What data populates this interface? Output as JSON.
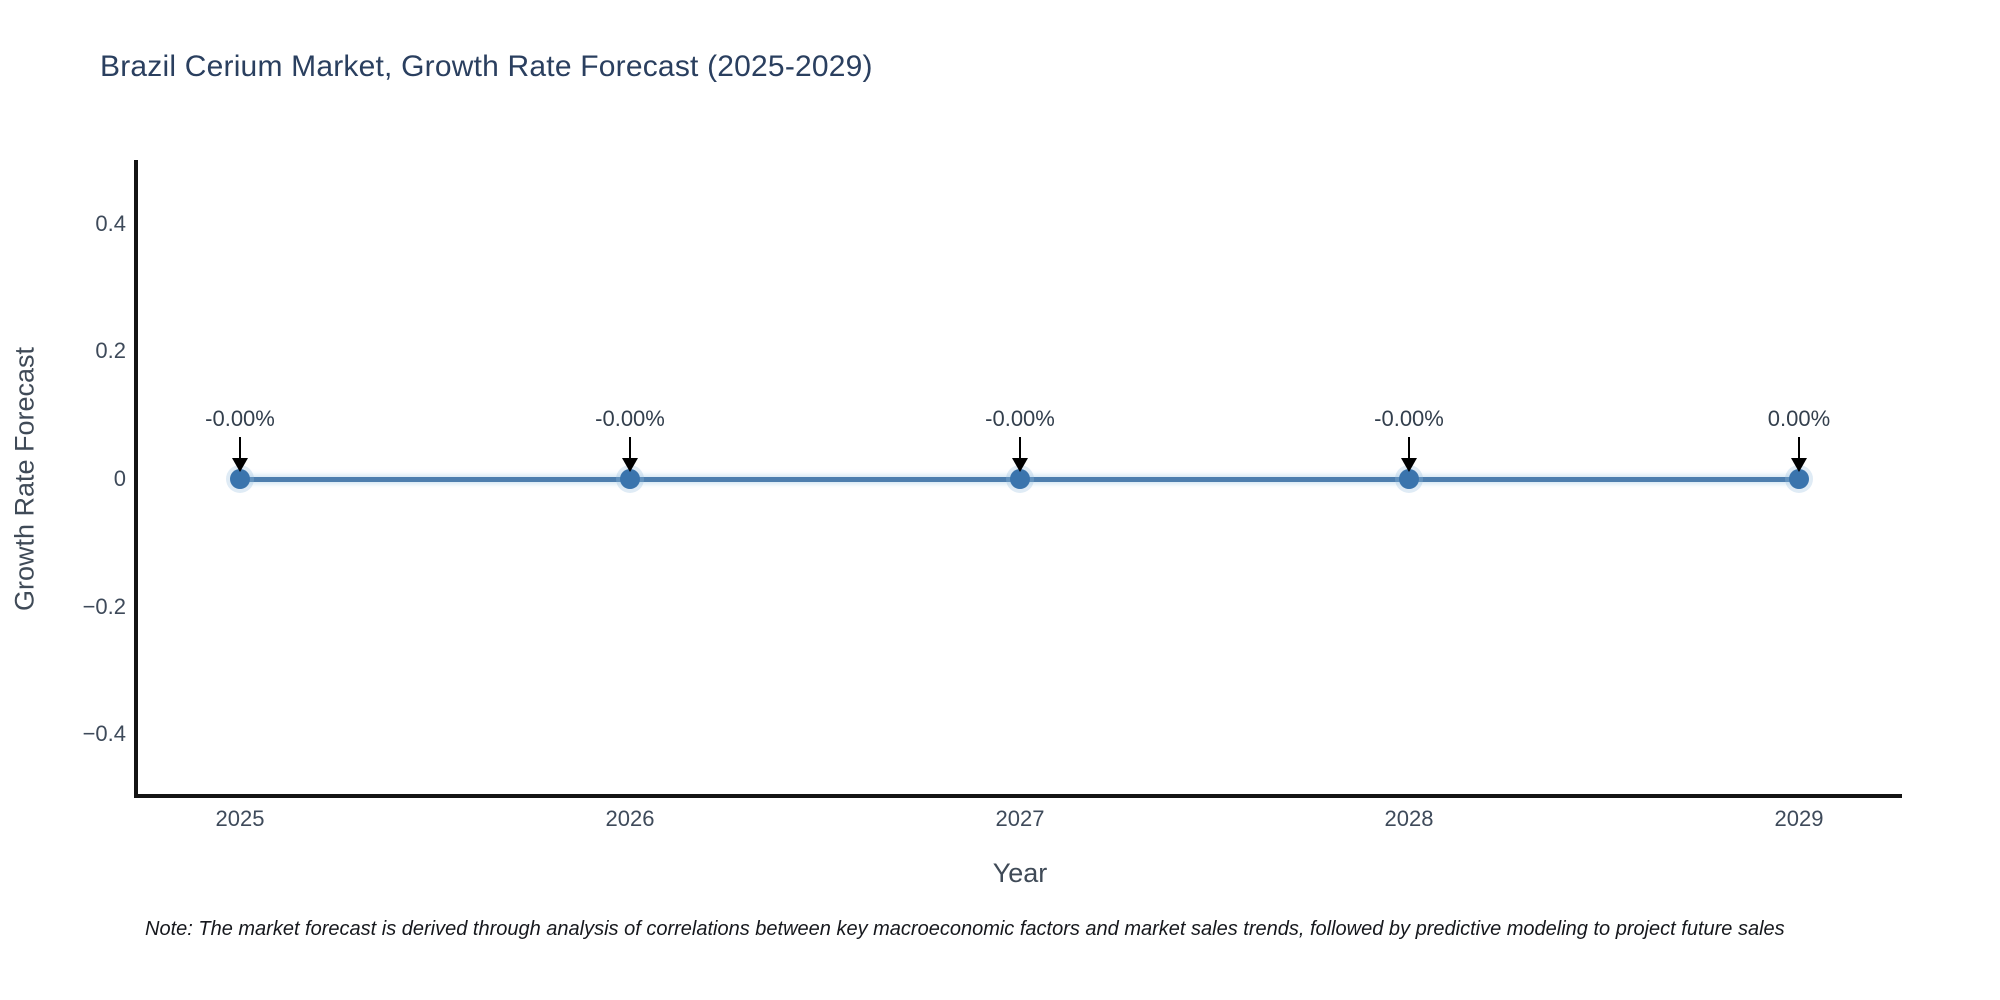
{
  "title": "Brazil Cerium Market, Growth Rate Forecast (2025-2029)",
  "note": "Note: The market forecast is derived through analysis of correlations between key macroeconomic factors and market sales trends, followed by predictive modeling to project future sales",
  "colors": {
    "title_text": "#2a3f5f",
    "axis_line": "#141414",
    "tick_text": "#3e4a5a",
    "axis_title_text": "#3f4a57",
    "series_line": "#4d7eae",
    "marker_fill": "#3a74ad",
    "annotation_text": "#333f4d",
    "annotation_arrow": "#000000",
    "background": "#ffffff"
  },
  "chart_data": {
    "type": "line",
    "title": "Brazil Cerium Market, Growth Rate Forecast (2025-2029)",
    "xlabel": "Year",
    "ylabel": "Growth Rate Forecast",
    "categories": [
      "2025",
      "2026",
      "2027",
      "2028",
      "2029"
    ],
    "series": [
      {
        "name": "Growth Rate Forecast",
        "values": [
          0,
          0,
          0,
          0,
          0
        ]
      }
    ],
    "point_labels": [
      "-0.00%",
      "-0.00%",
      "-0.00%",
      "-0.00%",
      "0.00%"
    ],
    "yticks": [
      {
        "value": 0.4,
        "label": "0.4"
      },
      {
        "value": 0.2,
        "label": "0.2"
      },
      {
        "value": 0,
        "label": "0"
      },
      {
        "value": -0.2,
        "label": "−0.2"
      },
      {
        "value": -0.4,
        "label": "−0.4"
      }
    ],
    "ylim": [
      -0.5,
      0.5
    ],
    "grid": false,
    "legend": "none",
    "marker": "circle",
    "annotation_style": "arrow-down"
  }
}
